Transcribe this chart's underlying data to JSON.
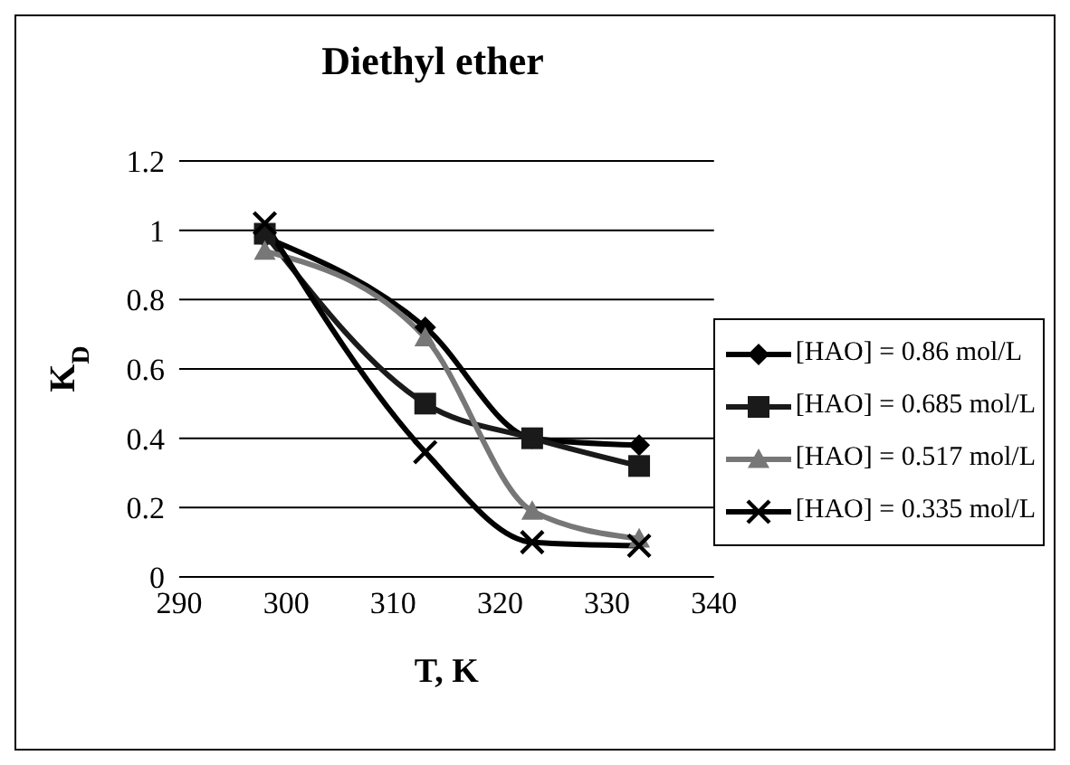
{
  "chart_data": {
    "type": "line",
    "title": "Diethyl ether",
    "xlabel": "T, K",
    "ylabel": "K$_{D}$",
    "x": [
      298,
      313,
      323,
      333
    ],
    "series": [
      {
        "name": "[HAO] = 0.86 mol/L",
        "color": "#000000",
        "marker": "diamond",
        "values": [
          0.98,
          0.72,
          0.4,
          0.38
        ]
      },
      {
        "name": "[HAO] = 0.685 mol/L",
        "color": "#1a1a1a",
        "marker": "square",
        "values": [
          0.99,
          0.5,
          0.4,
          0.32
        ]
      },
      {
        "name": "[HAO] = 0.517 mol/L",
        "color": "#777777",
        "marker": "triangle",
        "values": [
          0.94,
          0.69,
          0.19,
          0.11
        ]
      },
      {
        "name": "[HAO] = 0.335 mol/L",
        "color": "#000000",
        "marker": "cross",
        "values": [
          1.02,
          0.36,
          0.1,
          0.09
        ]
      }
    ],
    "xlim": [
      290,
      340
    ],
    "xticks": [
      290,
      300,
      310,
      320,
      330,
      340
    ],
    "ylim": [
      0,
      1.2
    ],
    "yticks": [
      0,
      0.2,
      0.4,
      0.6,
      0.8,
      1,
      1.2
    ],
    "grid": "y",
    "legend": "right"
  }
}
